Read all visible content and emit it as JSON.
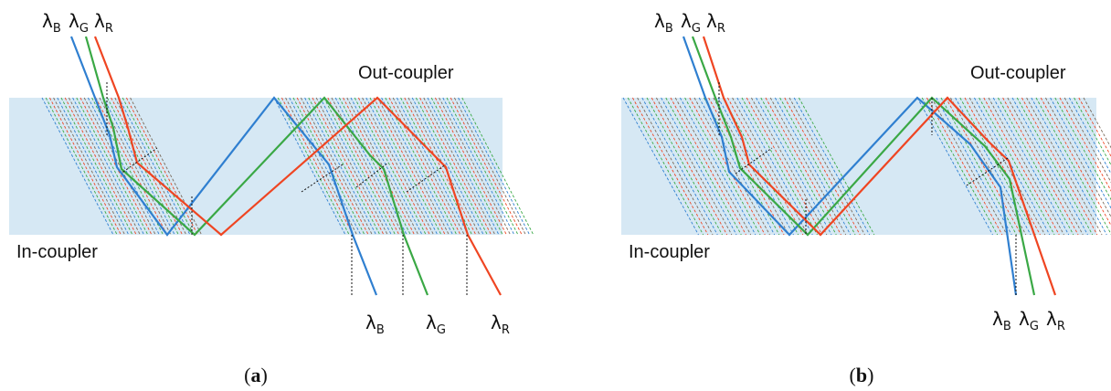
{
  "colors": {
    "waveguide": "#d6e8f4",
    "blue": "#2f7fd0",
    "green": "#3aa845",
    "red": "#ef4522",
    "grating_line": "#7a6a5a",
    "guide_line": "#111111"
  },
  "lambda_symbol": "λ",
  "wavelengths": {
    "blue": "B",
    "green": "G",
    "red": "R"
  },
  "panels": [
    {
      "in_coupler_label": "In-coupler",
      "out_coupler_label": "Out-coupler",
      "caption_open": "(",
      "caption_letter": "a",
      "caption_close": ")"
    },
    {
      "in_coupler_label": "In-coupler",
      "out_coupler_label": "Out-coupler",
      "caption_open": "(",
      "caption_letter": "b",
      "caption_close": ")"
    }
  ]
}
